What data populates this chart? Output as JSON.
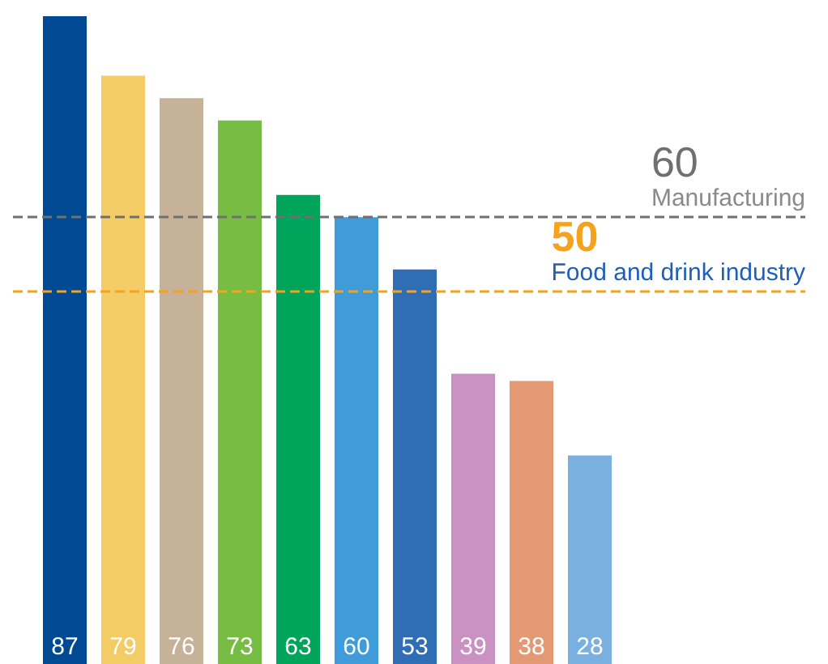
{
  "chart_data": {
    "type": "bar",
    "categories": [
      null,
      null,
      null,
      null,
      null,
      null,
      null,
      null,
      null,
      null
    ],
    "values": [
      87,
      79,
      76,
      73,
      63,
      60,
      53,
      39,
      38,
      28
    ],
    "colors": [
      "#004a93",
      "#f4cc66",
      "#c6b299",
      "#77bd43",
      "#00a45a",
      "#3f9cd8",
      "#2f6db5",
      "#c992c3",
      "#e39a74",
      "#7ab0e0"
    ],
    "ylim": [
      0,
      87
    ],
    "data_labels": true,
    "annotations": [
      {
        "text": "60",
        "y": 60
      },
      {
        "text": "50",
        "y": 50
      }
    ],
    "ref_lines": [
      {
        "axis": "y",
        "value": 60,
        "label": "Manufacturing",
        "color": "#707070",
        "line_style": "dashed"
      },
      {
        "axis": "y",
        "value": 50,
        "label": "Food and drink industry",
        "color": "#f5a21d",
        "line_style": "dashed"
      }
    ]
  }
}
